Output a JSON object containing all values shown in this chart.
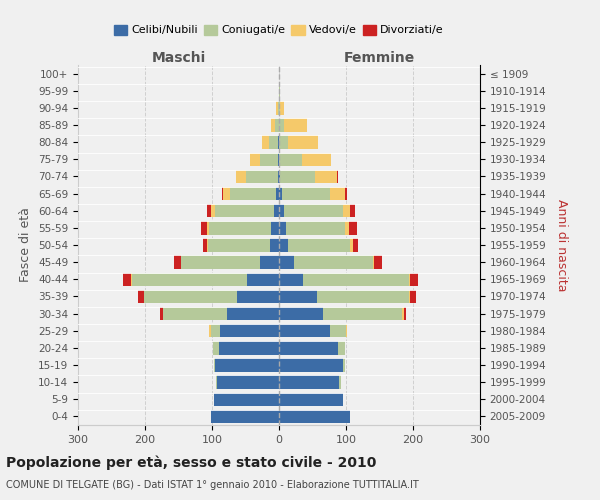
{
  "age_groups": [
    "0-4",
    "5-9",
    "10-14",
    "15-19",
    "20-24",
    "25-29",
    "30-34",
    "35-39",
    "40-44",
    "45-49",
    "50-54",
    "55-59",
    "60-64",
    "65-69",
    "70-74",
    "75-79",
    "80-84",
    "85-89",
    "90-94",
    "95-99",
    "100+"
  ],
  "birth_years": [
    "2005-2009",
    "2000-2004",
    "1995-1999",
    "1990-1994",
    "1985-1989",
    "1980-1984",
    "1975-1979",
    "1970-1974",
    "1965-1969",
    "1960-1964",
    "1955-1959",
    "1950-1954",
    "1945-1949",
    "1940-1944",
    "1935-1939",
    "1930-1934",
    "1925-1929",
    "1920-1924",
    "1915-1919",
    "1910-1914",
    "≤ 1909"
  ],
  "males_celibi": [
    102,
    97,
    92,
    95,
    90,
    88,
    78,
    62,
    48,
    28,
    14,
    12,
    8,
    5,
    2,
    1,
    1,
    0,
    0,
    0,
    0
  ],
  "males_coniugati": [
    0,
    0,
    2,
    2,
    8,
    14,
    95,
    140,
    172,
    118,
    92,
    92,
    88,
    68,
    48,
    28,
    14,
    6,
    2,
    0,
    0
  ],
  "males_vedovi": [
    0,
    0,
    0,
    0,
    0,
    2,
    0,
    0,
    1,
    1,
    2,
    4,
    6,
    10,
    14,
    14,
    10,
    6,
    2,
    0,
    0
  ],
  "males_divorziati": [
    0,
    0,
    0,
    0,
    0,
    0,
    4,
    8,
    12,
    10,
    6,
    8,
    6,
    2,
    0,
    0,
    0,
    0,
    0,
    0,
    0
  ],
  "females_nubili": [
    106,
    96,
    90,
    96,
    88,
    76,
    66,
    56,
    36,
    22,
    14,
    10,
    8,
    4,
    2,
    0,
    0,
    0,
    0,
    0,
    0
  ],
  "females_coniugate": [
    0,
    0,
    2,
    2,
    10,
    24,
    118,
    138,
    158,
    118,
    92,
    88,
    88,
    72,
    52,
    34,
    14,
    8,
    2,
    1,
    0
  ],
  "females_vedove": [
    0,
    0,
    0,
    0,
    0,
    2,
    2,
    2,
    2,
    2,
    4,
    6,
    10,
    22,
    32,
    44,
    44,
    34,
    6,
    1,
    0
  ],
  "females_divorziate": [
    0,
    0,
    0,
    0,
    0,
    0,
    4,
    8,
    12,
    12,
    8,
    12,
    8,
    4,
    2,
    0,
    0,
    0,
    0,
    0,
    0
  ],
  "colors_celibi": "#3c6ca6",
  "colors_coniugati": "#b5c99a",
  "colors_vedovi": "#f5c96a",
  "colors_divorziati": "#cc2222",
  "xlim": [
    -300,
    300
  ],
  "xticks": [
    -300,
    -200,
    -100,
    0,
    100,
    200,
    300
  ],
  "xticklabels": [
    "300",
    "200",
    "100",
    "0",
    "100",
    "200",
    "300"
  ],
  "title": "Popolazione per età, sesso e stato civile - 2010",
  "subtitle": "COMUNE DI TELGATE (BG) - Dati ISTAT 1° gennaio 2010 - Elaborazione TUTTITALIA.IT",
  "ylabel_left": "Fasce di età",
  "ylabel_right": "Anni di nascita",
  "label_maschi": "Maschi",
  "label_femmine": "Femmine",
  "legend_labels": [
    "Celibi/Nubili",
    "Coniugati/e",
    "Vedovi/e",
    "Divorziati/e"
  ],
  "background_color": "#f0f0f0",
  "plot_bg": "#f0f0f0",
  "bar_height": 0.78
}
